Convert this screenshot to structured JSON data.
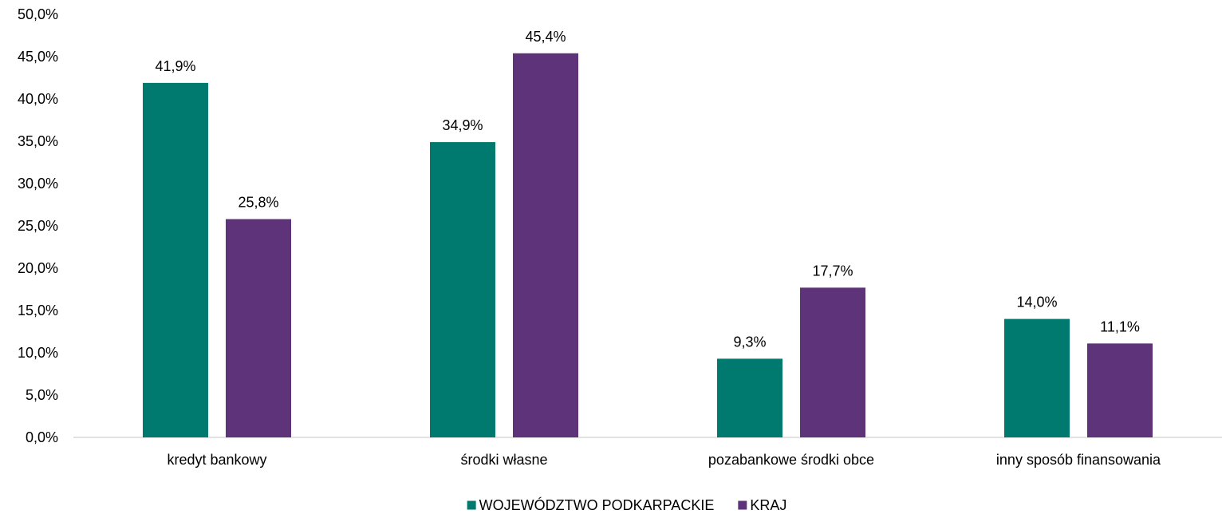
{
  "chart_data": {
    "type": "bar",
    "categories": [
      "kredyt bankowy",
      "środki własne",
      "pozabankowe środki obce",
      "inny sposób finansowania"
    ],
    "series": [
      {
        "name": "WOJEWÓDZTWO PODKARPACKIE",
        "values": [
          41.9,
          34.9,
          9.3,
          14.0
        ],
        "labels": [
          "41,9%",
          "34,9%",
          "9,3%",
          "14,0%"
        ],
        "color": "#007A6E"
      },
      {
        "name": "KRAJ",
        "values": [
          25.8,
          45.4,
          17.7,
          11.1
        ],
        "labels": [
          "25,8%",
          "45,4%",
          "17,7%",
          "11,1%"
        ],
        "color": "#5E3379"
      }
    ],
    "ylim": [
      0,
      50
    ],
    "yticks": [
      "0,0%",
      "5,0%",
      "10,0%",
      "15,0%",
      "20,0%",
      "25,0%",
      "30,0%",
      "35,0%",
      "40,0%",
      "45,0%",
      "50,0%"
    ],
    "grid": false,
    "legend_position": "bottom"
  }
}
